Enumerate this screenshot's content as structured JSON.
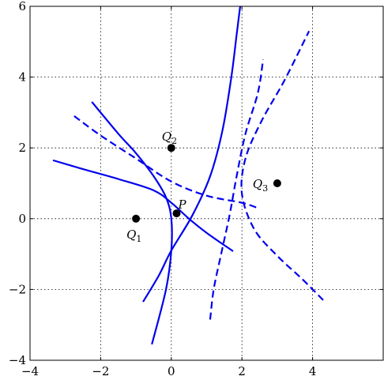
{
  "chart_data": {
    "type": "line",
    "title": "",
    "xlabel": "",
    "ylabel": "",
    "xlim": [
      -4,
      6
    ],
    "ylim": [
      -4,
      6
    ],
    "grid": true,
    "x_ticks": [
      -4,
      -2,
      0,
      2,
      4
    ],
    "y_ticks": [
      -4,
      -2,
      0,
      2,
      4,
      6
    ],
    "x_tick_labels": [
      "−4",
      "−2",
      "0",
      "2",
      "4"
    ],
    "y_tick_labels": [
      "−4",
      "−2",
      "0",
      "2",
      "4",
      "6"
    ],
    "line_color": "#0000ee",
    "points": [
      {
        "letter": "P",
        "sub": "",
        "x": 0.15,
        "y": 0.15
      },
      {
        "letter": "Q",
        "sub": "1",
        "x": -1.0,
        "y": 0.0
      },
      {
        "letter": "Q",
        "sub": "2",
        "x": 0.0,
        "y": 2.0
      },
      {
        "letter": "Q",
        "sub": "3",
        "x": 3.0,
        "y": 1.0
      }
    ],
    "series": [
      {
        "style": "solid",
        "values": [
          [
            -3.35,
            1.65
          ],
          [
            -2.5,
            1.4
          ],
          [
            -1.5,
            1.12
          ],
          [
            -0.5,
            0.8
          ],
          [
            0.0,
            0.45
          ],
          [
            0.5,
            0.0
          ],
          [
            1.0,
            -0.4
          ],
          [
            1.75,
            -0.92
          ]
        ]
      },
      {
        "style": "solid",
        "values": [
          [
            -2.25,
            3.3
          ],
          [
            -1.5,
            2.4
          ],
          [
            -1.0,
            1.85
          ],
          [
            -0.5,
            1.2
          ],
          [
            -0.15,
            0.6
          ],
          [
            0.0,
            0.0
          ],
          [
            0.0,
            -0.9
          ],
          [
            -0.15,
            -2.0
          ],
          [
            -0.55,
            -3.55
          ]
        ]
      },
      {
        "style": "solid",
        "values": [
          [
            -0.8,
            -2.35
          ],
          [
            -0.35,
            -1.6
          ],
          [
            0.0,
            -0.9
          ],
          [
            0.6,
            0.1
          ],
          [
            1.1,
            1.2
          ],
          [
            1.45,
            2.5
          ],
          [
            1.7,
            4.0
          ],
          [
            1.85,
            5.2
          ],
          [
            1.95,
            6.0
          ]
        ]
      },
      {
        "style": "dashed",
        "values": [
          [
            -2.75,
            2.9
          ],
          [
            -2.0,
            2.35
          ],
          [
            -1.0,
            1.7
          ],
          [
            0.0,
            1.05
          ],
          [
            1.0,
            0.65
          ],
          [
            2.0,
            0.45
          ],
          [
            2.45,
            0.3
          ]
        ]
      },
      {
        "style": "dashed",
        "values": [
          [
            1.1,
            -2.85
          ],
          [
            1.2,
            -2.0
          ],
          [
            1.4,
            -1.05
          ],
          [
            1.65,
            0.1
          ],
          [
            1.85,
            1.2
          ],
          [
            2.1,
            2.4
          ],
          [
            2.45,
            3.55
          ],
          [
            2.6,
            4.5
          ]
        ]
      },
      {
        "style": "dashed",
        "values": [
          [
            4.3,
            -2.3
          ],
          [
            3.7,
            -1.7
          ],
          [
            3.0,
            -1.05
          ],
          [
            2.35,
            -0.3
          ],
          [
            2.0,
            0.7
          ],
          [
            2.1,
            1.7
          ],
          [
            2.55,
            2.75
          ],
          [
            3.2,
            3.9
          ],
          [
            3.9,
            5.3
          ]
        ]
      }
    ]
  }
}
